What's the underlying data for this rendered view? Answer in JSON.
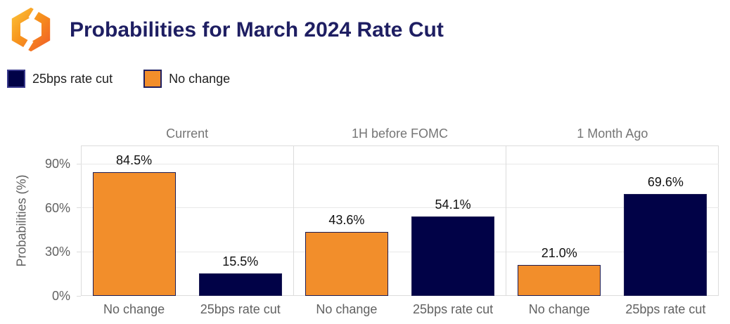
{
  "header": {
    "title": "Probabilities for March 2024 Rate Cut"
  },
  "legend": {
    "items": [
      {
        "label": "25bps rate cut",
        "color": "#010247",
        "border": "#3a3a8c"
      },
      {
        "label": "No change",
        "color": "#F28E2B",
        "border": "#1f1f60"
      }
    ]
  },
  "colors": {
    "accent_orange": "#F28E2B",
    "accent_navy": "#010247",
    "title_text": "#1e1e62",
    "bar_border": "#1c1c54",
    "grid": "#e8e8e8",
    "panel_border": "#dcdcdc",
    "axis_text": "#616161",
    "facet_title_text": "#757575",
    "value_label_text": "#111111"
  },
  "chart_data": {
    "type": "bar",
    "title": "Probabilities for March 2024 Rate Cut",
    "ylabel": "Probabilities (%)",
    "xlabel": "",
    "grid": true,
    "legend_position": "top-left",
    "ylim": [
      0,
      102.5
    ],
    "yticks": [
      0,
      30,
      60,
      90
    ],
    "ytick_labels": [
      "0%",
      "30%",
      "60%",
      "90%"
    ],
    "series_colors": {
      "No change": "#F28E2B",
      "25bps rate cut": "#010247"
    },
    "panels": [
      {
        "title": "Current",
        "categories": [
          "No change",
          "25bps rate cut"
        ],
        "values": [
          84.5,
          15.5
        ],
        "value_labels": [
          "84.5%",
          "15.5%"
        ]
      },
      {
        "title": "1H before FOMC",
        "categories": [
          "No change",
          "25bps rate cut"
        ],
        "values": [
          43.6,
          54.1
        ],
        "value_labels": [
          "43.6%",
          "54.1%"
        ]
      },
      {
        "title": "1 Month Ago",
        "categories": [
          "No change",
          "25bps rate cut"
        ],
        "values": [
          21.0,
          69.6
        ],
        "value_labels": [
          "21.0%",
          "69.6%"
        ]
      }
    ]
  }
}
